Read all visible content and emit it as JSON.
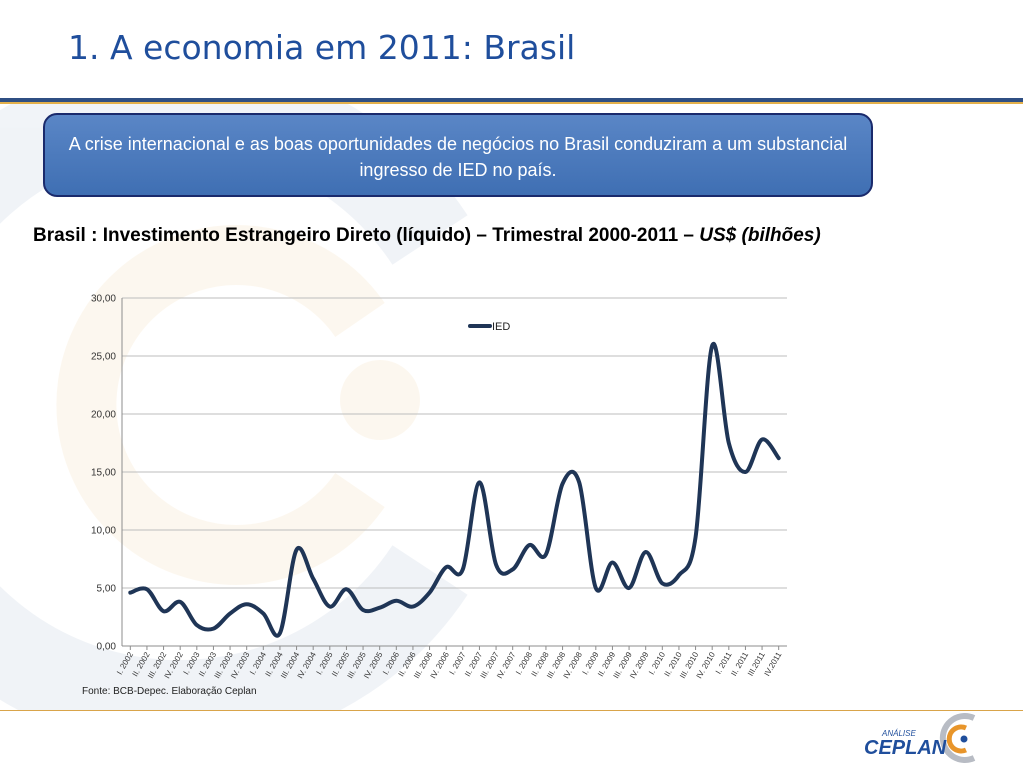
{
  "slide": {
    "title": "1. A economia em 2011: Brasil",
    "callout": "A crise internacional e as boas oportunidades de negócios no Brasil conduziram a um substancial ingresso de IED no país.",
    "chart_caption_main": "Brasil : Investimento Estrangeiro Direto (líquido) – Trimestral 2000-2011 – ",
    "chart_caption_unit": "US$ (bilhões)",
    "source": "Fonte: BCB-Depec. Elaboração Ceplan",
    "logo_small": "ANÁLISE",
    "logo_big": "CEPLAN",
    "colors": {
      "title": "#1f4e9c",
      "callout_bg": "#4a78b9",
      "callout_border": "#1a2a6c",
      "line": "#1f3556",
      "accent_gold": "#e3b04b"
    }
  },
  "chart_data": {
    "type": "line",
    "title": "",
    "xlabel": "",
    "ylabel": "",
    "ylim": [
      0,
      30
    ],
    "y_ticks": [
      "0,00",
      "5,00",
      "10,00",
      "15,00",
      "20,00",
      "25,00",
      "30,00"
    ],
    "grid": true,
    "legend_position": "top-center",
    "categories": [
      "I. 2002",
      "II. 2002",
      "III. 2002",
      "IV. 2002",
      "I. 2003",
      "II. 2003",
      "III. 2003",
      "IV. 2003",
      "I. 2004",
      "II. 2004",
      "III. 2004",
      "IV. 2004",
      "I. 2005",
      "II. 2005",
      "III. 2005",
      "IV. 2005",
      "I. 2006",
      "II. 2006",
      "III. 2006",
      "IV. 2006",
      "I. 2007",
      "II. 2007",
      "III. 2007",
      "IV. 2007",
      "I. 2008",
      "II. 2008",
      "III. 2008",
      "IV. 2008",
      "I. 2009",
      "II. 2009",
      "III. 2009",
      "IV. 2009",
      "I. 2010",
      "II. 2010",
      "III. 2010",
      "IV. 2010",
      "I. 2011",
      "II. 2011",
      "III.2011",
      "IV.2011"
    ],
    "series": [
      {
        "name": "IED",
        "values": [
          4.6,
          4.9,
          3.0,
          3.8,
          1.8,
          1.5,
          2.8,
          3.6,
          2.8,
          1.1,
          8.3,
          5.8,
          3.4,
          4.9,
          3.1,
          3.3,
          3.9,
          3.4,
          4.6,
          6.8,
          6.6,
          14.1,
          7.0,
          6.6,
          8.7,
          7.9,
          14.0,
          14.1,
          5.0,
          7.2,
          5.0,
          8.1,
          5.4,
          6.1,
          9.4,
          25.9,
          17.5,
          15.0,
          17.8,
          16.2
        ]
      }
    ]
  }
}
